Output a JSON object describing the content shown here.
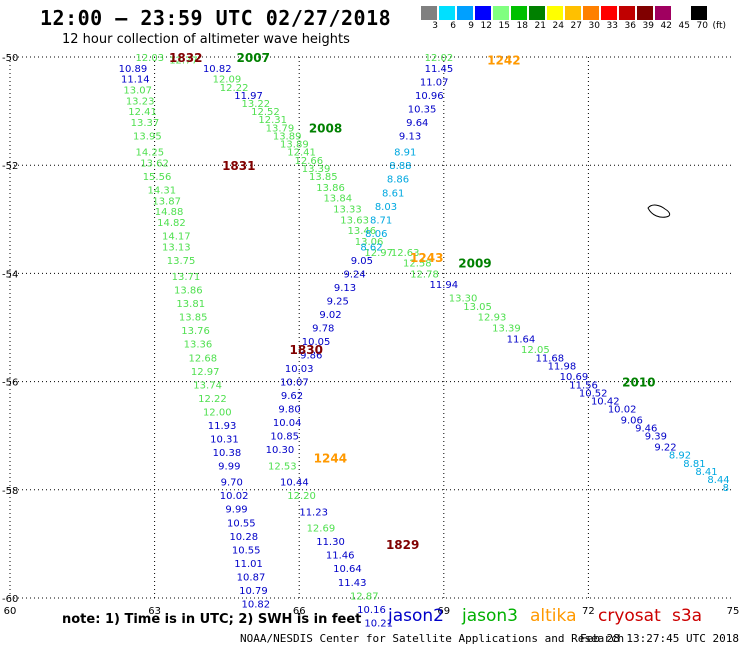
{
  "title": "12:00 – 23:59 UTC 02/27/2018",
  "subtitle": "12 hour collection of altimeter wave heights",
  "scale": {
    "labels": [
      "3",
      "6",
      "9",
      "12",
      "15",
      "18",
      "21",
      "24",
      "27",
      "30",
      "33",
      "36",
      "39",
      "42",
      "45",
      "70",
      "(ft)"
    ],
    "colors": [
      "#808080",
      "#00e0ff",
      "#00a0ff",
      "#0000ff",
      "#80ff80",
      "#00c000",
      "#008000",
      "#ffff00",
      "#ffc000",
      "#ff8000",
      "#ff0000",
      "#c00000",
      "#800000",
      "#a00060",
      "#ffffff",
      "#000000"
    ]
  },
  "note": "note:  1) Time is in UTC;  2) SWH is in feet",
  "legend": [
    {
      "label": "jason2",
      "color": "#0000c8"
    },
    {
      "label": "jason3",
      "color": "#00b000"
    },
    {
      "label": "altika",
      "color": "#ff9900"
    },
    {
      "label": "cryosat",
      "color": "#cc0000"
    },
    {
      "label": "s3a",
      "color": "#cc0000"
    }
  ],
  "credit": "NOAA/NESDIS Center for Satellite Applications and Research",
  "timestamp": "Feb 28 13:27:45 UTC 2018",
  "chart_data": {
    "type": "scatter",
    "title": "12:00 – 23:59 UTC 02/27/2018",
    "xlim": [
      60,
      75
    ],
    "ylim": [
      -60,
      -50
    ],
    "xticks": [
      "60",
      "63",
      "66",
      "69",
      "72",
      "75"
    ],
    "yticks": [
      "-50",
      "-52",
      "-54",
      "-56",
      "-58",
      "-60"
    ],
    "time_labels": [
      {
        "text": "1832",
        "lon": 63.3,
        "lat": -50.0,
        "color": "#800000"
      },
      {
        "text": "2007",
        "lon": 64.7,
        "lat": -50.0,
        "color": "#008000"
      },
      {
        "text": "2008",
        "lon": 66.2,
        "lat": -51.3,
        "color": "#008000"
      },
      {
        "text": "1831",
        "lon": 64.4,
        "lat": -52.0,
        "color": "#800000"
      },
      {
        "text": "1242",
        "lon": 69.9,
        "lat": -50.05,
        "color": "#ff9900"
      },
      {
        "text": "1243",
        "lon": 68.3,
        "lat": -53.7,
        "color": "#ff9900"
      },
      {
        "text": "2009",
        "lon": 69.3,
        "lat": -53.8,
        "color": "#008000"
      },
      {
        "text": "1830",
        "lon": 65.8,
        "lat": -55.4,
        "color": "#800000"
      },
      {
        "text": "2010",
        "lon": 72.7,
        "lat": -56.0,
        "color": "#008000"
      },
      {
        "text": "1244",
        "lon": 66.3,
        "lat": -57.4,
        "color": "#ff9900"
      },
      {
        "text": "1829",
        "lon": 67.8,
        "lat": -59.0,
        "color": "#800000"
      }
    ],
    "series": [
      {
        "name": "cryosat",
        "points": [
          {
            "lon": 62.9,
            "lat": -50.0,
            "v": "12.03"
          },
          {
            "lon": 62.55,
            "lat": -50.2,
            "v": "10.89"
          },
          {
            "lon": 62.6,
            "lat": -50.4,
            "v": "11.14"
          },
          {
            "lon": 62.65,
            "lat": -50.6,
            "v": "13.07"
          },
          {
            "lon": 62.7,
            "lat": -50.8,
            "v": "13.23"
          },
          {
            "lon": 62.75,
            "lat": -51.0,
            "v": "12.41"
          },
          {
            "lon": 62.8,
            "lat": -51.2,
            "v": "13.37"
          },
          {
            "lon": 62.85,
            "lat": -51.45,
            "v": "13.95"
          },
          {
            "lon": 62.9,
            "lat": -51.75,
            "v": "14.25"
          },
          {
            "lon": 63.0,
            "lat": -51.95,
            "v": "13.62"
          },
          {
            "lon": 63.05,
            "lat": -52.2,
            "v": "15.56"
          },
          {
            "lon": 63.15,
            "lat": -52.45,
            "v": "14.31"
          },
          {
            "lon": 63.25,
            "lat": -52.65,
            "v": "13.87"
          },
          {
            "lon": 63.3,
            "lat": -52.85,
            "v": "14.88"
          },
          {
            "lon": 63.35,
            "lat": -53.05,
            "v": "14.82"
          },
          {
            "lon": 63.45,
            "lat": -53.3,
            "v": "14.17"
          },
          {
            "lon": 63.45,
            "lat": -53.5,
            "v": "13.13"
          },
          {
            "lon": 63.55,
            "lat": -53.75,
            "v": "13.75"
          },
          {
            "lon": 63.65,
            "lat": -54.05,
            "v": "13.71"
          },
          {
            "lon": 63.7,
            "lat": -54.3,
            "v": "13.86"
          },
          {
            "lon": 63.75,
            "lat": -54.55,
            "v": "13.81"
          },
          {
            "lon": 63.8,
            "lat": -54.8,
            "v": "13.85"
          },
          {
            "lon": 63.85,
            "lat": -55.05,
            "v": "13.76"
          },
          {
            "lon": 63.9,
            "lat": -55.3,
            "v": "13.36"
          },
          {
            "lon": 64.0,
            "lat": -55.55,
            "v": "12.68"
          },
          {
            "lon": 64.05,
            "lat": -55.8,
            "v": "12.97"
          },
          {
            "lon": 64.1,
            "lat": -56.05,
            "v": "13.74"
          },
          {
            "lon": 64.2,
            "lat": -56.3,
            "v": "12.22"
          },
          {
            "lon": 64.3,
            "lat": -56.55,
            "v": "12.00"
          },
          {
            "lon": 64.4,
            "lat": -56.8,
            "v": "11.93"
          },
          {
            "lon": 64.45,
            "lat": -57.05,
            "v": "10.31"
          },
          {
            "lon": 64.5,
            "lat": -57.3,
            "v": "10.38"
          },
          {
            "lon": 64.55,
            "lat": -57.55,
            "v": "9.99"
          },
          {
            "lon": 64.6,
            "lat": -57.85,
            "v": "9.70"
          },
          {
            "lon": 64.65,
            "lat": -58.1,
            "v": "10.02"
          },
          {
            "lon": 64.7,
            "lat": -58.35,
            "v": "9.99"
          },
          {
            "lon": 64.8,
            "lat": -58.6,
            "v": "10.55"
          },
          {
            "lon": 64.85,
            "lat": -58.85,
            "v": "10.28"
          },
          {
            "lon": 64.9,
            "lat": -59.1,
            "v": "10.55"
          },
          {
            "lon": 64.95,
            "lat": -59.35,
            "v": "11.01"
          },
          {
            "lon": 65.0,
            "lat": -59.6,
            "v": "10.87"
          },
          {
            "lon": 65.05,
            "lat": -59.85,
            "v": "10.79"
          },
          {
            "lon": 65.1,
            "lat": -60.1,
            "v": "10.82"
          }
        ]
      },
      {
        "name": "jason3",
        "points": [
          {
            "lon": 63.6,
            "lat": -50.05,
            "v": "12.77"
          },
          {
            "lon": 64.3,
            "lat": -50.2,
            "v": "10.82"
          },
          {
            "lon": 64.5,
            "lat": -50.4,
            "v": "12.09"
          },
          {
            "lon": 64.65,
            "lat": -50.55,
            "v": "12.22"
          },
          {
            "lon": 64.95,
            "lat": -50.7,
            "v": "11.97"
          },
          {
            "lon": 65.1,
            "lat": -50.85,
            "v": "13.22"
          },
          {
            "lon": 65.3,
            "lat": -51.0,
            "v": "12.52"
          },
          {
            "lon": 65.45,
            "lat": -51.15,
            "v": "12.31"
          },
          {
            "lon": 65.6,
            "lat": -51.3,
            "v": "13.79"
          },
          {
            "lon": 65.75,
            "lat": -51.45,
            "v": "13.89"
          },
          {
            "lon": 65.9,
            "lat": -51.6,
            "v": "13.89"
          },
          {
            "lon": 66.05,
            "lat": -51.75,
            "v": "12.41"
          },
          {
            "lon": 66.2,
            "lat": -51.9,
            "v": "12.66"
          },
          {
            "lon": 66.35,
            "lat": -52.05,
            "v": "13.39"
          },
          {
            "lon": 66.5,
            "lat": -52.2,
            "v": "13.85"
          },
          {
            "lon": 66.65,
            "lat": -52.4,
            "v": "13.86"
          },
          {
            "lon": 66.8,
            "lat": -52.6,
            "v": "13.84"
          },
          {
            "lon": 67.0,
            "lat": -52.8,
            "v": "13.33"
          },
          {
            "lon": 67.15,
            "lat": -53.0,
            "v": "13.63"
          },
          {
            "lon": 67.3,
            "lat": -53.2,
            "v": "13.46"
          },
          {
            "lon": 67.45,
            "lat": -53.4,
            "v": "13.06"
          },
          {
            "lon": 67.65,
            "lat": -53.6,
            "v": "12.97"
          },
          {
            "lon": 68.2,
            "lat": -53.6,
            "v": "12.63"
          },
          {
            "lon": 68.45,
            "lat": -53.8,
            "v": "12.58"
          },
          {
            "lon": 68.6,
            "lat": -54.0,
            "v": "12.78"
          },
          {
            "lon": 69.0,
            "lat": -54.2,
            "v": "11.94"
          },
          {
            "lon": 69.4,
            "lat": -54.45,
            "v": "13.30"
          },
          {
            "lon": 69.7,
            "lat": -54.6,
            "v": "13.05"
          },
          {
            "lon": 70.0,
            "lat": -54.8,
            "v": "12.93"
          },
          {
            "lon": 70.3,
            "lat": -55.0,
            "v": "13.39"
          },
          {
            "lon": 70.6,
            "lat": -55.2,
            "v": "11.64"
          },
          {
            "lon": 70.9,
            "lat": -55.4,
            "v": "12.05"
          },
          {
            "lon": 71.2,
            "lat": -55.55,
            "v": "11.68"
          },
          {
            "lon": 71.45,
            "lat": -55.7,
            "v": "11.98"
          },
          {
            "lon": 71.7,
            "lat": -55.9,
            "v": "10.69"
          },
          {
            "lon": 71.9,
            "lat": -56.05,
            "v": "11.56"
          },
          {
            "lon": 72.1,
            "lat": -56.2,
            "v": "10.52"
          },
          {
            "lon": 72.35,
            "lat": -56.35,
            "v": "10.42"
          },
          {
            "lon": 72.7,
            "lat": -56.5,
            "v": "10.02"
          },
          {
            "lon": 72.9,
            "lat": -56.7,
            "v": "9.06"
          },
          {
            "lon": 73.2,
            "lat": -56.85,
            "v": "9.46"
          },
          {
            "lon": 73.4,
            "lat": -57.0,
            "v": "9.39"
          },
          {
            "lon": 73.6,
            "lat": -57.2,
            "v": "9.22"
          },
          {
            "lon": 73.9,
            "lat": -57.35,
            "v": "8.92"
          },
          {
            "lon": 74.2,
            "lat": -57.5,
            "v": "8.81"
          },
          {
            "lon": 74.45,
            "lat": -57.65,
            "v": "8.41"
          },
          {
            "lon": 74.7,
            "lat": -57.8,
            "v": "8.44"
          },
          {
            "lon": 74.85,
            "lat": -57.95,
            "v": "8"
          }
        ]
      },
      {
        "name": "jason2",
        "points": [
          {
            "lon": 68.9,
            "lat": -50.0,
            "v": "12.02"
          },
          {
            "lon": 68.9,
            "lat": -50.2,
            "v": "11.45"
          },
          {
            "lon": 68.8,
            "lat": -50.45,
            "v": "11.07"
          },
          {
            "lon": 68.7,
            "lat": -50.7,
            "v": "10.96"
          },
          {
            "lon": 68.55,
            "lat": -50.95,
            "v": "10.35"
          },
          {
            "lon": 68.45,
            "lat": -51.2,
            "v": "9.64"
          },
          {
            "lon": 68.3,
            "lat": -51.45,
            "v": "9.13"
          },
          {
            "lon": 68.2,
            "lat": -51.75,
            "v": "8.91"
          },
          {
            "lon": 68.1,
            "lat": -52.0,
            "v": "8.88"
          },
          {
            "lon": 68.05,
            "lat": -52.25,
            "v": "8.86"
          },
          {
            "lon": 67.95,
            "lat": -52.5,
            "v": "8.61"
          },
          {
            "lon": 67.8,
            "lat": -52.75,
            "v": "8.03"
          },
          {
            "lon": 67.7,
            "lat": -53.0,
            "v": "8.71"
          },
          {
            "lon": 67.6,
            "lat": -53.25,
            "v": "8.06"
          },
          {
            "lon": 67.5,
            "lat": -53.5,
            "v": "8.62"
          },
          {
            "lon": 67.3,
            "lat": -53.75,
            "v": "9.05"
          },
          {
            "lon": 67.15,
            "lat": -54.0,
            "v": "9.24"
          },
          {
            "lon": 66.95,
            "lat": -54.25,
            "v": "9.13"
          },
          {
            "lon": 66.8,
            "lat": -54.5,
            "v": "9.25"
          },
          {
            "lon": 66.65,
            "lat": -54.75,
            "v": "9.02"
          },
          {
            "lon": 66.5,
            "lat": -55.0,
            "v": "9.78"
          },
          {
            "lon": 66.35,
            "lat": -55.25,
            "v": "10.05"
          },
          {
            "lon": 66.25,
            "lat": -55.5,
            "v": "9.86"
          },
          {
            "lon": 66.0,
            "lat": -55.75,
            "v": "10.03"
          },
          {
            "lon": 65.9,
            "lat": -56.0,
            "v": "10.07"
          },
          {
            "lon": 65.85,
            "lat": -56.25,
            "v": "9.62"
          },
          {
            "lon": 65.8,
            "lat": -56.5,
            "v": "9.80"
          },
          {
            "lon": 65.75,
            "lat": -56.75,
            "v": "10.04"
          },
          {
            "lon": 65.7,
            "lat": -57.0,
            "v": "10.85"
          },
          {
            "lon": 65.6,
            "lat": -57.25,
            "v": "10.30"
          },
          {
            "lon": 65.65,
            "lat": -57.55,
            "v": "12.53"
          },
          {
            "lon": 65.9,
            "lat": -57.85,
            "v": "10.44"
          },
          {
            "lon": 66.05,
            "lat": -58.1,
            "v": "12.20"
          },
          {
            "lon": 66.3,
            "lat": -58.4,
            "v": "11.23"
          },
          {
            "lon": 66.45,
            "lat": -58.7,
            "v": "12.69"
          },
          {
            "lon": 66.65,
            "lat": -58.95,
            "v": "11.30"
          },
          {
            "lon": 66.85,
            "lat": -59.2,
            "v": "11.46"
          },
          {
            "lon": 67.0,
            "lat": -59.45,
            "v": "10.64"
          },
          {
            "lon": 67.1,
            "lat": -59.7,
            "v": "11.43"
          },
          {
            "lon": 67.35,
            "lat": -59.95,
            "v": "12.87"
          },
          {
            "lon": 67.5,
            "lat": -60.2,
            "v": "10.16"
          },
          {
            "lon": 67.65,
            "lat": -60.45,
            "v": "10.21"
          }
        ]
      }
    ],
    "colors": {
      "cyan": "#00a8e0",
      "blue": "#0000c8",
      "green": "#50e050",
      "darkgreen": "#008000"
    }
  }
}
